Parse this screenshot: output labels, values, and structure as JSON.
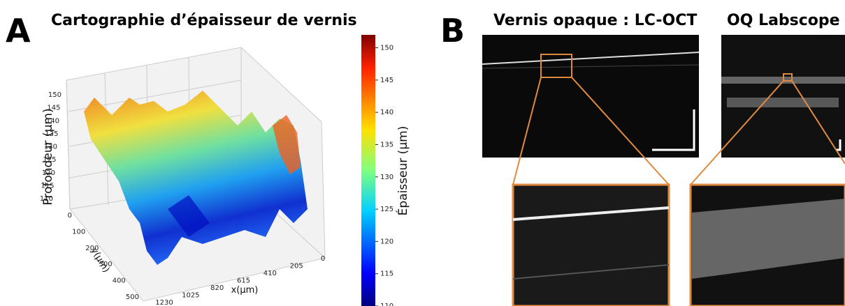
{
  "panel_a": {
    "letter": "A",
    "title": "Cartographie d’épaisseur de vernis",
    "z_label": "Profondeur (µm)",
    "z_ticks": [
      110,
      115,
      120,
      125,
      130,
      135,
      140,
      145,
      150
    ],
    "y_label": "y(µm)",
    "y_ticks": [
      0,
      100,
      200,
      300,
      400,
      500
    ],
    "x_label": "x(µm)",
    "x_ticks": [
      1230,
      1025,
      820,
      615,
      410,
      205,
      0
    ],
    "colorbar": {
      "label": "Épaisseur (µm)",
      "lim": [
        110,
        152
      ],
      "ticks": [
        110,
        115,
        120,
        125,
        130,
        135,
        140,
        145,
        150
      ]
    }
  },
  "panel_b": {
    "letter": "B",
    "titles": [
      "Vernis opaque : LC-OCT",
      "OQ Labscope"
    ]
  }
}
